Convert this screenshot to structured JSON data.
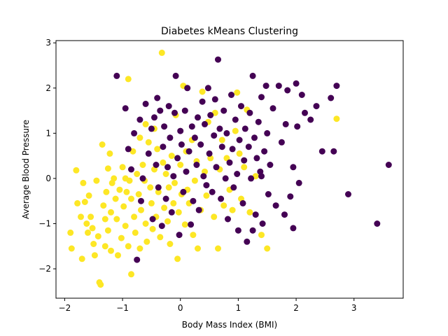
{
  "chart_data": {
    "type": "scatter",
    "title": "Diabetes kMeans Clustering",
    "xlabel": "Body Mass Index (BMI)",
    "ylabel": "Average Blood Pressure",
    "xlim": [
      -2.15,
      3.85
    ],
    "ylim": [
      -2.65,
      3.05
    ],
    "xticks": [
      -2,
      -1,
      0,
      1,
      2,
      3
    ],
    "yticks": [
      -2,
      -1,
      0,
      1,
      2,
      3
    ],
    "grid": false,
    "legend": "none",
    "series": [
      {
        "color": "#fde725",
        "points": [
          [
            -1.9,
            -1.2
          ],
          [
            -1.88,
            -1.55
          ],
          [
            -1.8,
            0.18
          ],
          [
            -1.78,
            -0.55
          ],
          [
            -1.72,
            -0.85
          ],
          [
            -1.7,
            -1.78
          ],
          [
            -1.68,
            -0.1
          ],
          [
            -1.65,
            -0.52
          ],
          [
            -1.62,
            -1.0
          ],
          [
            -1.6,
            -1.2
          ],
          [
            -1.58,
            -0.38
          ],
          [
            -1.55,
            -0.85
          ],
          [
            -1.52,
            -1.1
          ],
          [
            -1.5,
            -1.45
          ],
          [
            -1.48,
            -1.7
          ],
          [
            -1.45,
            -0.05
          ],
          [
            -1.42,
            -1.28
          ],
          [
            -1.4,
            -2.3
          ],
          [
            -1.38,
            -2.35
          ],
          [
            -1.35,
            0.75
          ],
          [
            -1.33,
            -0.6
          ],
          [
            -1.3,
            -0.9
          ],
          [
            -1.3,
            -1.5
          ],
          [
            -1.28,
            -0.3
          ],
          [
            -1.25,
            0.22
          ],
          [
            -1.25,
            -1.15
          ],
          [
            -1.22,
            0.55
          ],
          [
            -1.2,
            -0.75
          ],
          [
            -1.2,
            -1.6
          ],
          [
            -1.18,
            -0.1
          ],
          [
            -1.15,
            0.0
          ],
          [
            -1.12,
            -0.45
          ],
          [
            -1.1,
            -0.9
          ],
          [
            -1.08,
            -1.7
          ],
          [
            -1.05,
            -0.25
          ],
          [
            -1.02,
            -1.32
          ],
          [
            -1.0,
            0.25
          ],
          [
            -0.98,
            -0.62
          ],
          [
            -0.95,
            -1.05
          ],
          [
            -0.93,
            -0.3
          ],
          [
            -0.9,
            2.2
          ],
          [
            -0.9,
            -1.5
          ],
          [
            -0.88,
            -0.05
          ],
          [
            -0.85,
            -0.45
          ],
          [
            -0.85,
            -2.12
          ],
          [
            -0.82,
            0.6
          ],
          [
            -0.8,
            -0.85
          ],
          [
            -0.78,
            -1.2
          ],
          [
            -0.75,
            0.1
          ],
          [
            -0.72,
            -0.35
          ],
          [
            -0.7,
            -1.55
          ],
          [
            -0.68,
            -0.7
          ],
          [
            -0.65,
            0.3
          ],
          [
            -0.62,
            -0.05
          ],
          [
            -0.6,
            -1.0
          ],
          [
            -0.58,
            -1.4
          ],
          [
            -0.55,
            0.8
          ],
          [
            -0.52,
            -0.2
          ],
          [
            -0.5,
            -0.55
          ],
          [
            -0.48,
            -1.12
          ],
          [
            -0.45,
            0.2
          ],
          [
            -0.42,
            -0.85
          ],
          [
            -0.4,
            0.65
          ],
          [
            -0.38,
            -0.3
          ],
          [
            -0.35,
            -1.3
          ],
          [
            -0.32,
            2.78
          ],
          [
            -0.3,
            0.35
          ],
          [
            -0.28,
            -0.65
          ],
          [
            -0.25,
            0.1
          ],
          [
            -0.22,
            -0.95
          ],
          [
            -0.2,
            -0.2
          ],
          [
            -0.18,
            -1.45
          ],
          [
            -0.15,
            0.5
          ],
          [
            -0.12,
            -0.55
          ],
          [
            -0.1,
            -0.1
          ],
          [
            -0.08,
            1.4
          ],
          [
            -0.05,
            -1.78
          ],
          [
            -0.03,
            -0.75
          ],
          [
            0.0,
            0.3
          ],
          [
            0.02,
            -0.35
          ],
          [
            0.05,
            2.05
          ],
          [
            0.08,
            -1.02
          ],
          [
            0.1,
            0.6
          ],
          [
            0.12,
            -0.25
          ],
          [
            0.15,
            -0.55
          ],
          [
            0.2,
            0.85
          ],
          [
            0.22,
            -1.25
          ],
          [
            0.25,
            -0.05
          ],
          [
            0.28,
            0.38
          ],
          [
            0.3,
            -1.55
          ],
          [
            0.35,
            -0.7
          ],
          [
            0.38,
            1.92
          ],
          [
            0.42,
            0.15
          ],
          [
            0.45,
            -0.38
          ],
          [
            0.48,
            1.25
          ],
          [
            0.52,
            0.45
          ],
          [
            0.58,
            -0.85
          ],
          [
            0.6,
            1.45
          ],
          [
            0.65,
            -1.55
          ],
          [
            0.68,
            0.2
          ],
          [
            0.72,
            0.85
          ],
          [
            0.75,
            -0.6
          ],
          [
            0.8,
            0.45
          ],
          [
            0.85,
            -0.25
          ],
          [
            0.9,
            -0.7
          ],
          [
            0.95,
            1.05
          ],
          [
            0.98,
            1.9
          ],
          [
            1.02,
            0.55
          ],
          [
            1.05,
            -0.45
          ],
          [
            1.1,
            0.25
          ],
          [
            1.15,
            1.52
          ],
          [
            1.2,
            -0.75
          ],
          [
            1.3,
            0.05
          ],
          [
            1.4,
            -1.25
          ],
          [
            1.5,
            -1.55
          ],
          [
            2.7,
            1.32
          ],
          [
            -0.7,
            0.9
          ],
          [
            -0.6,
            1.2
          ],
          [
            -0.45,
            1.1
          ],
          [
            -0.95,
            0.0
          ]
        ]
      },
      {
        "color": "#440154",
        "points": [
          [
            -1.1,
            2.27
          ],
          [
            -0.95,
            1.55
          ],
          [
            -0.9,
            0.65
          ],
          [
            -0.85,
            0.2
          ],
          [
            -0.8,
            1.0
          ],
          [
            -0.75,
            -1.8
          ],
          [
            -0.7,
            1.3
          ],
          [
            -0.68,
            -0.5
          ],
          [
            -0.65,
            0.0
          ],
          [
            -0.6,
            1.65
          ],
          [
            -0.55,
            0.55
          ],
          [
            -0.5,
            1.1
          ],
          [
            -0.48,
            -0.9
          ],
          [
            -0.45,
            1.35
          ],
          [
            -0.42,
            0.3
          ],
          [
            -0.4,
            1.78
          ],
          [
            -0.38,
            -0.2
          ],
          [
            -0.35,
            1.5
          ],
          [
            -0.32,
            -1.05
          ],
          [
            -0.3,
            0.7
          ],
          [
            -0.28,
            1.15
          ],
          [
            -0.25,
            -0.45
          ],
          [
            -0.22,
            0.25
          ],
          [
            -0.2,
            1.6
          ],
          [
            -0.18,
            0.9
          ],
          [
            -0.15,
            -0.75
          ],
          [
            -0.12,
            0.05
          ],
          [
            -0.1,
            1.45
          ],
          [
            -0.08,
            2.27
          ],
          [
            -0.05,
            0.45
          ],
          [
            -0.02,
            -1.25
          ],
          [
            0.0,
            1.05
          ],
          [
            0.02,
            0.75
          ],
          [
            0.05,
            -0.3
          ],
          [
            0.08,
            1.5
          ],
          [
            0.1,
            0.15
          ],
          [
            0.12,
            2.0
          ],
          [
            0.15,
            0.6
          ],
          [
            0.18,
            -1.02
          ],
          [
            0.2,
            1.15
          ],
          [
            0.22,
            -0.5
          ],
          [
            0.25,
            0.9
          ],
          [
            0.28,
            0.3
          ],
          [
            0.3,
            1.35
          ],
          [
            0.32,
            -0.7
          ],
          [
            0.35,
            0.75
          ],
          [
            0.38,
            1.7
          ],
          [
            0.4,
            0.05
          ],
          [
            0.42,
            1.2
          ],
          [
            0.45,
            -0.15
          ],
          [
            0.48,
            2.0
          ],
          [
            0.5,
            0.55
          ],
          [
            0.52,
            1.4
          ],
          [
            0.55,
            -0.3
          ],
          [
            0.58,
            0.95
          ],
          [
            0.6,
            1.75
          ],
          [
            0.62,
            0.25
          ],
          [
            0.65,
            2.63
          ],
          [
            0.68,
            1.1
          ],
          [
            0.7,
            -0.45
          ],
          [
            0.72,
            0.7
          ],
          [
            0.75,
            1.5
          ],
          [
            0.78,
            0.0
          ],
          [
            0.8,
            1.0
          ],
          [
            0.82,
            -0.9
          ],
          [
            0.85,
            0.35
          ],
          [
            0.88,
            1.85
          ],
          [
            0.9,
            0.65
          ],
          [
            0.92,
            -0.2
          ],
          [
            0.95,
            1.3
          ],
          [
            0.98,
            0.1
          ],
          [
            1.0,
            -1.15
          ],
          [
            1.02,
            0.85
          ],
          [
            1.05,
            1.6
          ],
          [
            1.08,
            -0.55
          ],
          [
            1.1,
            0.4
          ],
          [
            1.12,
            1.1
          ],
          [
            1.15,
            -1.4
          ],
          [
            1.18,
            0.7
          ],
          [
            1.2,
            1.45
          ],
          [
            1.22,
            0.0
          ],
          [
            1.25,
            2.27
          ],
          [
            1.28,
            0.9
          ],
          [
            1.3,
            -0.8
          ],
          [
            1.32,
            0.45
          ],
          [
            1.35,
            1.25
          ],
          [
            1.38,
            0.15
          ],
          [
            1.4,
            1.8
          ],
          [
            1.42,
            -1.0
          ],
          [
            1.45,
            0.6
          ],
          [
            1.48,
            2.05
          ],
          [
            1.5,
            1.0
          ],
          [
            1.52,
            -0.35
          ],
          [
            1.55,
            0.3
          ],
          [
            1.6,
            1.55
          ],
          [
            1.65,
            -0.6
          ],
          [
            1.7,
            2.05
          ],
          [
            1.75,
            0.8
          ],
          [
            1.8,
            -0.8
          ],
          [
            1.82,
            1.2
          ],
          [
            1.85,
            1.95
          ],
          [
            1.9,
            -0.4
          ],
          [
            1.95,
            0.25
          ],
          [
            2.0,
            2.1
          ],
          [
            2.02,
            1.15
          ],
          [
            2.05,
            -0.1
          ],
          [
            2.1,
            1.85
          ],
          [
            2.15,
            1.45
          ],
          [
            2.25,
            1.3
          ],
          [
            2.35,
            1.6
          ],
          [
            2.45,
            0.6
          ],
          [
            2.6,
            1.78
          ],
          [
            2.65,
            0.6
          ],
          [
            2.7,
            2.05
          ],
          [
            2.9,
            -0.35
          ],
          [
            3.4,
            -1.0
          ],
          [
            3.6,
            0.3
          ],
          [
            1.95,
            -1.1
          ],
          [
            1.25,
            -1.15
          ],
          [
            1.4,
            0.05
          ]
        ]
      }
    ]
  }
}
